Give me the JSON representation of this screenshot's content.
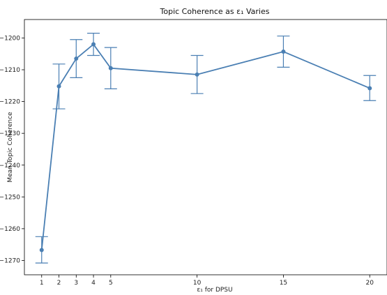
{
  "chart_data": {
    "type": "line",
    "title": "Topic Coherence as ε₁ Varies",
    "xlabel": "ε₁ for DPSU",
    "ylabel": "Mean Topic Coherence",
    "x": [
      1,
      2,
      3,
      4,
      5,
      10,
      15,
      20
    ],
    "series": [
      {
        "values": [
          -1266.7,
          -1215.2,
          -1206.5,
          -1202.0,
          -1209.5,
          -1211.5,
          -1204.3,
          -1215.8
        ],
        "error_low": [
          -1270.8,
          -1222.3,
          -1212.5,
          -1205.5,
          -1216.0,
          -1217.5,
          -1209.2,
          -1219.7
        ],
        "error_high": [
          -1262.5,
          -1208.2,
          -1200.5,
          -1198.5,
          -1203.0,
          -1205.5,
          -1199.4,
          -1211.8
        ]
      }
    ],
    "xticks": [
      "1",
      "2",
      "3",
      "4",
      "5",
      "10",
      "15",
      "20"
    ],
    "yticks": [
      "-1200",
      "-1210",
      "-1220",
      "-1230",
      "-1240",
      "-1250",
      "-1260",
      "-1270"
    ],
    "ytick_values": [
      -1200,
      -1210,
      -1220,
      -1230,
      -1240,
      -1250,
      -1260,
      -1270
    ],
    "xlim": [
      0,
      21
    ],
    "ylim": [
      -1274.5,
      -1194.2
    ],
    "grid": false,
    "color": "#4a7fb3"
  }
}
